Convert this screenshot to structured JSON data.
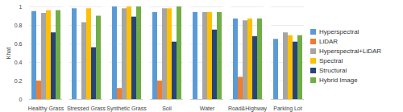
{
  "chart_data": {
    "type": "bar",
    "categories": [
      "Healthy Grass",
      "Stressed Grass",
      "Synthetic Grass",
      "Soil",
      "Water",
      "Road&Highway",
      "Parking Lot"
    ],
    "y_label": "Khat",
    "ylim": [
      0,
      1
    ],
    "yticks": [
      0,
      0.2,
      0.4,
      0.6,
      0.8,
      1
    ],
    "grid": true,
    "legend": "right",
    "series": [
      {
        "name": "Hyperspectral",
        "color": "#5b9bd5",
        "values": [
          0.95,
          0.98,
          1.0,
          0.94,
          0.94,
          0.87,
          0.65
        ]
      },
      {
        "name": "LiDAR",
        "color": "#ed7d31",
        "values": [
          0.2,
          null,
          0.12,
          0.2,
          null,
          0.24,
          null
        ]
      },
      {
        "name": "Hyperspectral+LiDAR",
        "color": "#a5a5a5",
        "values": [
          0.93,
          0.83,
          0.98,
          0.98,
          0.94,
          0.85,
          0.72
        ]
      },
      {
        "name": "Spectral",
        "color": "#ffc000",
        "values": [
          0.96,
          0.98,
          1.0,
          0.98,
          0.94,
          0.87,
          0.69
        ]
      },
      {
        "name": "Structural",
        "color": "#264478",
        "values": [
          0.72,
          0.56,
          0.89,
          0.62,
          0.75,
          0.68,
          0.62
        ]
      },
      {
        "name": "Hybrid Image",
        "color": "#70ad47",
        "values": [
          0.96,
          0.9,
          1.0,
          1.0,
          0.94,
          0.87,
          0.69
        ]
      }
    ]
  }
}
